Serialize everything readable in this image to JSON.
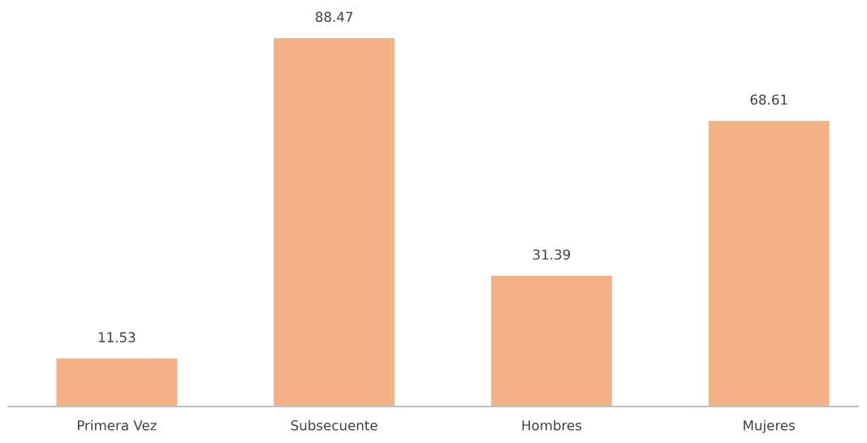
{
  "chart_data": {
    "type": "bar",
    "categories": [
      "Primera Vez",
      "Subsecuente",
      "Hombres",
      "Mujeres"
    ],
    "values": [
      11.53,
      88.47,
      31.39,
      68.61
    ],
    "color": "#f4b183",
    "data_labels": true,
    "grid": false,
    "legend": false
  }
}
